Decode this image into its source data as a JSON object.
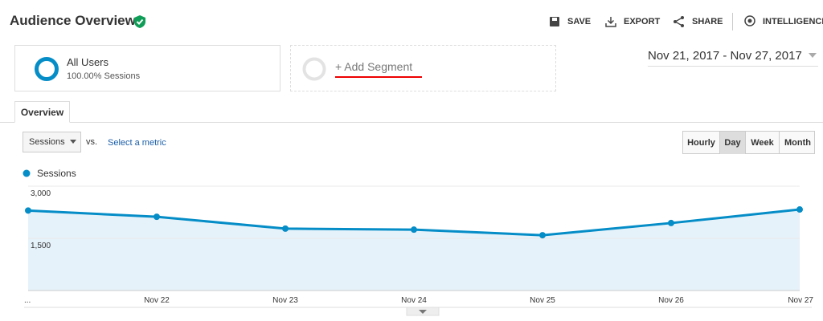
{
  "header": {
    "title": "Audience Overview",
    "actions": [
      "SAVE",
      "EXPORT",
      "SHARE",
      "INTELLIGENCE"
    ]
  },
  "segments": {
    "active": {
      "name": "All Users",
      "detail": "100.00% Sessions"
    },
    "add": "+ Add Segment"
  },
  "date_range": "Nov 21, 2017 - Nov 27, 2017",
  "tabs": [
    "Overview"
  ],
  "metric_selector": {
    "metric": "Sessions",
    "vs": "vs.",
    "compare": "Select a metric"
  },
  "granularity": [
    "Hourly",
    "Day",
    "Week",
    "Month"
  ],
  "active_granularity": 1,
  "chart_data": {
    "type": "line",
    "categories": [
      "...",
      "Nov 22",
      "Nov 23",
      "Nov 24",
      "Nov 25",
      "Nov 26",
      "Nov 27"
    ],
    "series": [
      {
        "name": "Sessions",
        "color": "#058dc7",
        "values": [
          2300,
          2120,
          1780,
          1750,
          1590,
          1940,
          2330
        ]
      }
    ],
    "ylim": [
      0,
      3000
    ],
    "yticks": [
      {
        "value": 1500,
        "label": "1,500"
      },
      {
        "value": 3000,
        "label": "3,000"
      }
    ],
    "grid": true,
    "area": true,
    "area_color": "#e6f2fa"
  }
}
